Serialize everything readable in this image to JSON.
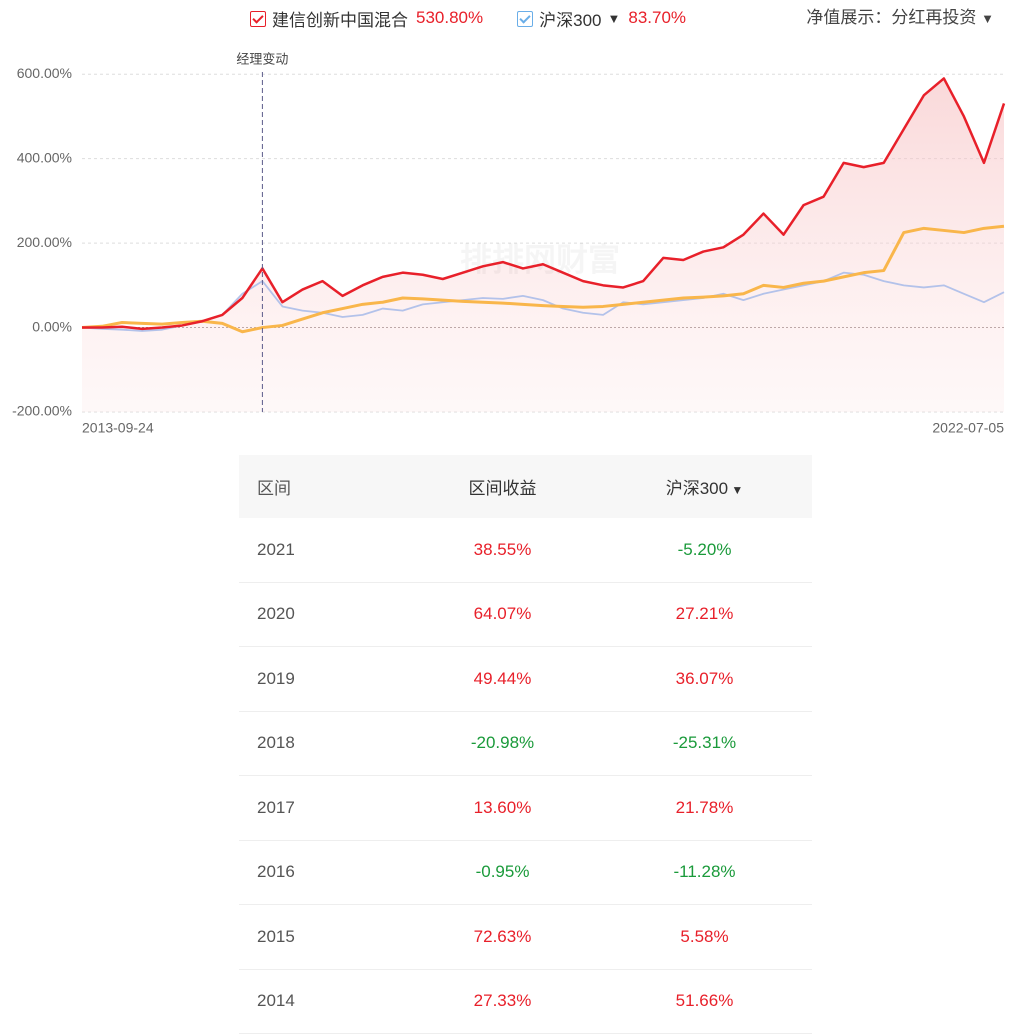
{
  "chart_data": {
    "type": "line",
    "watermark": "排排网财富",
    "categories": [
      "2013-09-24",
      null,
      null,
      null,
      null,
      null,
      null,
      null,
      null,
      null,
      null,
      null,
      null,
      null,
      null,
      null,
      null,
      null,
      null,
      null,
      null,
      null,
      null,
      null,
      null,
      null,
      null,
      null,
      null,
      null,
      null,
      null,
      null,
      null,
      null,
      null,
      null,
      null,
      null,
      null,
      null,
      null,
      null,
      null,
      null,
      null,
      "2022-07-05"
    ],
    "series": [
      {
        "name": "建信创新中国混合",
        "return": "530.80%",
        "color": "#e8202a",
        "area": true,
        "values": [
          0,
          0,
          2,
          -3,
          0,
          5,
          15,
          30,
          70,
          140,
          60,
          90,
          110,
          75,
          100,
          120,
          130,
          125,
          115,
          130,
          145,
          155,
          140,
          150,
          130,
          110,
          100,
          95,
          110,
          165,
          160,
          180,
          190,
          220,
          270,
          220,
          290,
          310,
          390,
          380,
          390,
          470,
          550,
          590,
          500,
          390,
          530.8
        ]
      },
      {
        "name": "沪深300",
        "return": "83.70%",
        "color": "#b3c2ea",
        "values": [
          0,
          -3,
          -5,
          -8,
          -5,
          5,
          15,
          30,
          80,
          110,
          50,
          40,
          35,
          25,
          30,
          45,
          40,
          55,
          60,
          65,
          70,
          68,
          75,
          65,
          45,
          35,
          30,
          60,
          55,
          60,
          65,
          70,
          80,
          65,
          80,
          90,
          100,
          110,
          130,
          125,
          110,
          100,
          95,
          100,
          80,
          60,
          83.7
        ]
      },
      {
        "color": "#f9b64b",
        "values": [
          0,
          3,
          12,
          10,
          8,
          12,
          15,
          10,
          -10,
          0,
          5,
          20,
          35,
          45,
          55,
          60,
          70,
          68,
          65,
          62,
          60,
          58,
          55,
          52,
          50,
          48,
          50,
          55,
          60,
          65,
          70,
          72,
          75,
          80,
          100,
          95,
          105,
          110,
          120,
          130,
          135,
          225,
          235,
          230,
          225,
          235,
          240
        ]
      }
    ],
    "ylim": [
      -200,
      610
    ],
    "yticks": [
      {
        "value": -200,
        "label": "-200.00%"
      },
      {
        "value": 0,
        "label": "0.00%"
      },
      {
        "value": 200,
        "label": "200.00%"
      },
      {
        "value": 400,
        "label": "400.00%"
      },
      {
        "value": 600,
        "label": "600.00%"
      }
    ],
    "grid": true,
    "annotations": [
      {
        "text": "经理变动",
        "at": 9
      }
    ]
  },
  "controls": {
    "label": "净值展示：",
    "option": "分红再投资"
  },
  "table": {
    "header": [
      "区间",
      "区间收益",
      "沪深300"
    ],
    "rows": [
      [
        "2021",
        "38.55%",
        "-5.20%"
      ],
      [
        "2020",
        "64.07%",
        "27.21%"
      ],
      [
        "2019",
        "49.44%",
        "36.07%"
      ],
      [
        "2018",
        "-20.98%",
        "-25.31%"
      ],
      [
        "2017",
        "13.60%",
        "21.78%"
      ],
      [
        "2016",
        "-0.95%",
        "-11.28%"
      ],
      [
        "2015",
        "72.63%",
        "5.58%"
      ],
      [
        "2014",
        "27.33%",
        "51.66%"
      ]
    ]
  }
}
